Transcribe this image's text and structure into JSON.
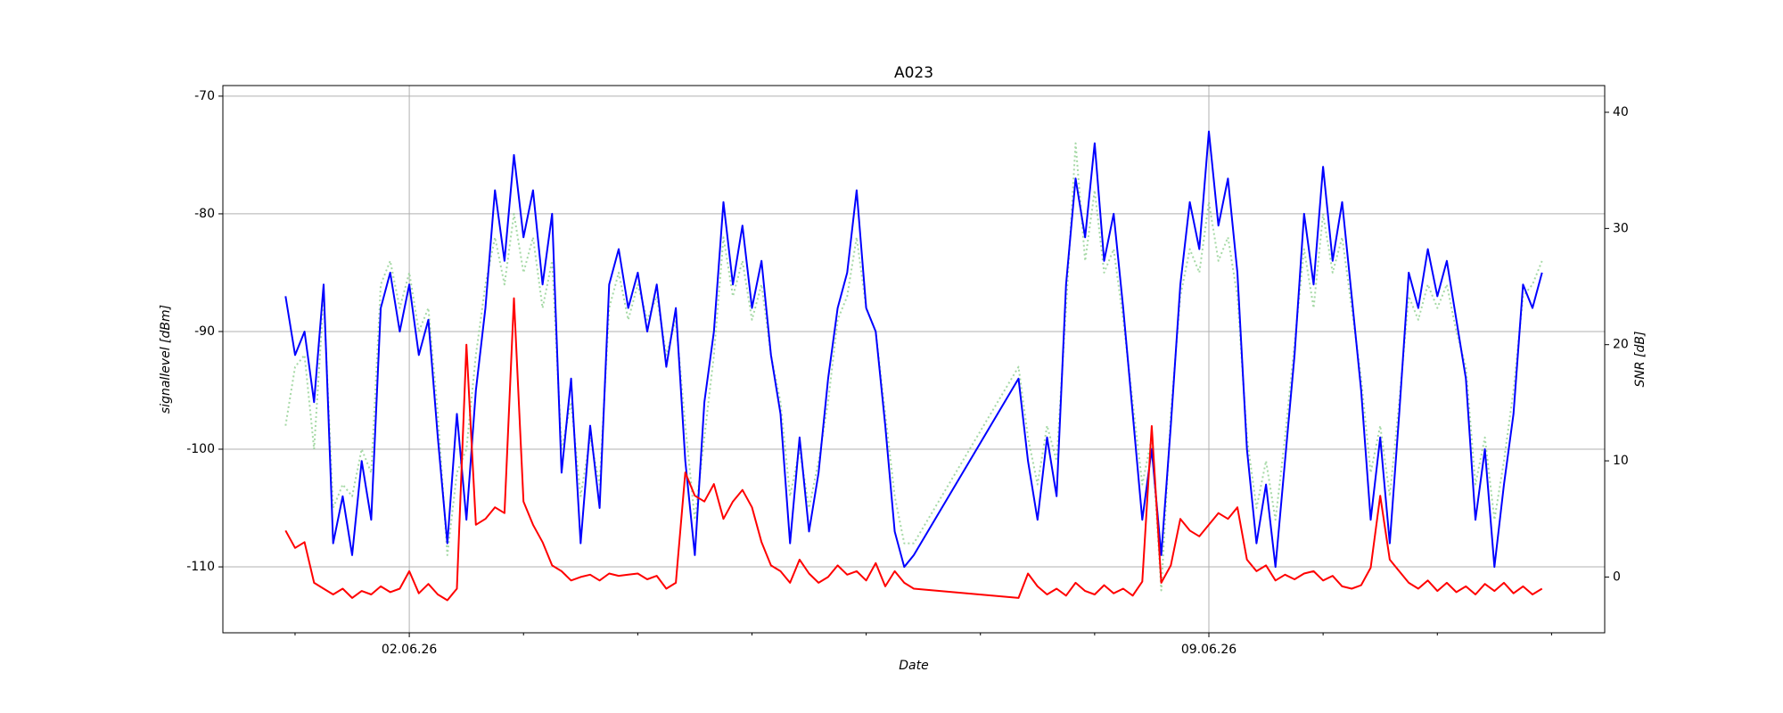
{
  "chart_data": {
    "type": "line",
    "title": "A023",
    "xlabel": "Date",
    "ylabel": "signallevel [dBm]",
    "y2label": "SNR [dB]",
    "x": [
      "2026-05-31 22:00",
      "2026-06-01 00:00",
      "2026-06-01 02:00",
      "2026-06-01 04:00",
      "2026-06-01 06:00",
      "2026-06-01 08:00",
      "2026-06-01 10:00",
      "2026-06-01 12:00",
      "2026-06-01 14:00",
      "2026-06-01 16:00",
      "2026-06-01 18:00",
      "2026-06-01 20:00",
      "2026-06-01 22:00",
      "2026-06-02 00:00",
      "2026-06-02 02:00",
      "2026-06-02 04:00",
      "2026-06-02 06:00",
      "2026-06-02 08:00",
      "2026-06-02 10:00",
      "2026-06-02 12:00",
      "2026-06-02 14:00",
      "2026-06-02 16:00",
      "2026-06-02 18:00",
      "2026-06-02 20:00",
      "2026-06-02 22:00",
      "2026-06-03 00:00",
      "2026-06-03 02:00",
      "2026-06-03 04:00",
      "2026-06-03 06:00",
      "2026-06-03 08:00",
      "2026-06-03 10:00",
      "2026-06-03 12:00",
      "2026-06-03 14:00",
      "2026-06-03 16:00",
      "2026-06-03 18:00",
      "2026-06-03 20:00",
      "2026-06-03 22:00",
      "2026-06-04 00:00",
      "2026-06-04 02:00",
      "2026-06-04 04:00",
      "2026-06-04 06:00",
      "2026-06-04 08:00",
      "2026-06-04 10:00",
      "2026-06-04 12:00",
      "2026-06-04 14:00",
      "2026-06-04 16:00",
      "2026-06-04 18:00",
      "2026-06-04 20:00",
      "2026-06-04 22:00",
      "2026-06-05 00:00",
      "2026-06-05 02:00",
      "2026-06-05 04:00",
      "2026-06-05 06:00",
      "2026-06-05 08:00",
      "2026-06-05 10:00",
      "2026-06-05 12:00",
      "2026-06-05 14:00",
      "2026-06-05 16:00",
      "2026-06-05 18:00",
      "2026-06-05 20:00",
      "2026-06-05 22:00",
      "2026-06-06 00:00",
      "2026-06-06 02:00",
      "2026-06-06 04:00",
      "2026-06-06 06:00",
      "2026-06-06 08:00",
      "2026-06-06 10:00",
      "2026-06-07 08:00",
      "2026-06-07 10:00",
      "2026-06-07 12:00",
      "2026-06-07 14:00",
      "2026-06-07 16:00",
      "2026-06-07 18:00",
      "2026-06-07 20:00",
      "2026-06-07 22:00",
      "2026-06-08 00:00",
      "2026-06-08 02:00",
      "2026-06-08 04:00",
      "2026-06-08 06:00",
      "2026-06-08 08:00",
      "2026-06-08 10:00",
      "2026-06-08 12:00",
      "2026-06-08 14:00",
      "2026-06-08 16:00",
      "2026-06-08 18:00",
      "2026-06-08 20:00",
      "2026-06-08 22:00",
      "2026-06-09 00:00",
      "2026-06-09 02:00",
      "2026-06-09 04:00",
      "2026-06-09 06:00",
      "2026-06-09 08:00",
      "2026-06-09 10:00",
      "2026-06-09 12:00",
      "2026-06-09 14:00",
      "2026-06-09 16:00",
      "2026-06-09 18:00",
      "2026-06-09 20:00",
      "2026-06-09 22:00",
      "2026-06-10 00:00",
      "2026-06-10 02:00",
      "2026-06-10 04:00",
      "2026-06-10 06:00",
      "2026-06-10 08:00",
      "2026-06-10 10:00",
      "2026-06-10 12:00",
      "2026-06-10 14:00",
      "2026-06-10 16:00",
      "2026-06-10 18:00",
      "2026-06-10 20:00",
      "2026-06-10 22:00",
      "2026-06-11 00:00",
      "2026-06-11 02:00",
      "2026-06-11 04:00",
      "2026-06-11 06:00",
      "2026-06-11 08:00",
      "2026-06-11 10:00",
      "2026-06-11 12:00",
      "2026-06-11 14:00",
      "2026-06-11 16:00",
      "2026-06-11 18:00",
      "2026-06-11 20:00",
      "2026-06-11 22:00"
    ],
    "series": [
      {
        "color": "#90d090",
        "linestyle": "dotted",
        "axis": "y",
        "values": [
          -98,
          -93,
          -92,
          -100,
          -87,
          -105,
          -103,
          -104,
          -100,
          -102,
          -86,
          -84,
          -88,
          -85,
          -90,
          -88,
          -97,
          -109,
          -102,
          -100,
          -92,
          -86,
          -82,
          -86,
          -80,
          -85,
          -82,
          -88,
          -84,
          -100,
          -96,
          -104,
          -99,
          -103,
          -88,
          -85,
          -89,
          -86,
          -89,
          -87,
          -92,
          -89,
          -98,
          -106,
          -99,
          -92,
          -82,
          -87,
          -84,
          -89,
          -86,
          -92,
          -96,
          -104,
          -100,
          -105,
          -101,
          -96,
          -89,
          -87,
          -82,
          -88,
          -90,
          -97,
          -104,
          -108,
          -108,
          -93,
          -99,
          -103,
          -98,
          -101,
          -88,
          -74,
          -84,
          -78,
          -85,
          -83,
          -89,
          -96,
          -103,
          -99,
          -112,
          -97,
          -87,
          -83,
          -85,
          -79,
          -84,
          -82,
          -87,
          -99,
          -105,
          -101,
          -106,
          -99,
          -91,
          -83,
          -88,
          -80,
          -85,
          -82,
          -88,
          -94,
          -102,
          -98,
          -104,
          -96,
          -87,
          -89,
          -86,
          -88,
          -86,
          -90,
          -93,
          -103,
          -99,
          -106,
          -101,
          -95,
          -87,
          -86,
          -84
        ]
      },
      {
        "color": "#0000ff",
        "linestyle": "solid",
        "axis": "y",
        "values": [
          -87,
          -92,
          -90,
          -96,
          -86,
          -108,
          -104,
          -109,
          -101,
          -106,
          -88,
          -85,
          -90,
          -86,
          -92,
          -89,
          -99,
          -108,
          -97,
          -106,
          -95,
          -88,
          -78,
          -84,
          -75,
          -82,
          -78,
          -86,
          -80,
          -102,
          -94,
          -108,
          -98,
          -105,
          -86,
          -83,
          -88,
          -85,
          -90,
          -86,
          -93,
          -88,
          -101,
          -109,
          -96,
          -90,
          -79,
          -86,
          -81,
          -88,
          -84,
          -92,
          -97,
          -108,
          -99,
          -107,
          -102,
          -94,
          -88,
          -85,
          -78,
          -88,
          -90,
          -98,
          -107,
          -110,
          -109,
          -94,
          -101,
          -106,
          -99,
          -104,
          -86,
          -77,
          -82,
          -74,
          -84,
          -80,
          -88,
          -97,
          -106,
          -100,
          -109,
          -98,
          -86,
          -79,
          -83,
          -73,
          -81,
          -77,
          -85,
          -100,
          -108,
          -103,
          -110,
          -101,
          -92,
          -80,
          -86,
          -76,
          -84,
          -79,
          -87,
          -95,
          -106,
          -99,
          -108,
          -97,
          -85,
          -88,
          -83,
          -87,
          -84,
          -89,
          -94,
          -106,
          -100,
          -110,
          -103,
          -97,
          -86,
          -88,
          -85
        ]
      },
      {
        "color": "#ff0000",
        "linestyle": "solid",
        "axis": "y2",
        "values": [
          4,
          2.5,
          3,
          -0.5,
          -1,
          -1.5,
          -1,
          -1.8,
          -1.2,
          -1.5,
          -0.8,
          -1.3,
          -1,
          0.5,
          -1.4,
          -0.6,
          -1.5,
          -2,
          -1,
          20,
          4.5,
          5,
          6,
          5.5,
          24,
          6.5,
          4.5,
          3,
          1,
          0.5,
          -0.3,
          0,
          0.2,
          -0.3,
          0.3,
          0.1,
          0.2,
          0.3,
          -0.2,
          0.1,
          -1,
          -0.5,
          9,
          7,
          6.5,
          8,
          5,
          6.5,
          7.5,
          6,
          3,
          1,
          0.5,
          -0.5,
          1.5,
          0.3,
          -0.5,
          0,
          1,
          0.2,
          0.5,
          -0.3,
          1.2,
          -0.8,
          0.5,
          -0.5,
          -1,
          -1.8,
          0.3,
          -0.8,
          -1.5,
          -1,
          -1.6,
          -0.5,
          -1.2,
          -1.5,
          -0.7,
          -1.4,
          -1,
          -1.6,
          -0.4,
          13,
          -0.5,
          1,
          5,
          4,
          3.5,
          4.5,
          5.5,
          5,
          6,
          1.5,
          0.5,
          1,
          -0.3,
          0.2,
          -0.2,
          0.3,
          0.5,
          -0.3,
          0.1,
          -0.8,
          -1,
          -0.7,
          0.8,
          7,
          1.5,
          0.5,
          -0.5,
          -1,
          -0.3,
          -1.2,
          -0.5,
          -1.3,
          -0.8,
          -1.5,
          -0.6,
          -1.2,
          -0.5,
          -1.4,
          -0.8,
          -1.5,
          -1
        ]
      }
    ],
    "xlim": [
      "2026-05-31 08:50",
      "2026-06-12 11:10"
    ],
    "xticks": [
      {
        "value": "2026-06-02 00:00",
        "label": "02.06.26"
      },
      {
        "value": "2026-06-09 00:00",
        "label": "09.06.26"
      }
    ],
    "xminorticks": [
      "2026-06-01 00:00",
      "2026-06-03 00:00",
      "2026-06-04 00:00",
      "2026-06-05 00:00",
      "2026-06-06 00:00",
      "2026-06-07 00:00",
      "2026-06-08 00:00",
      "2026-06-10 00:00",
      "2026-06-11 00:00",
      "2026-06-12 00:00"
    ],
    "ylim": [
      -115.6,
      -69.1
    ],
    "yticks": [
      -110,
      -100,
      -90,
      -80,
      -70
    ],
    "y2lim": [
      -4.8,
      42.3
    ],
    "y2ticks": [
      0,
      10,
      20,
      30,
      40
    ],
    "grid": true
  }
}
